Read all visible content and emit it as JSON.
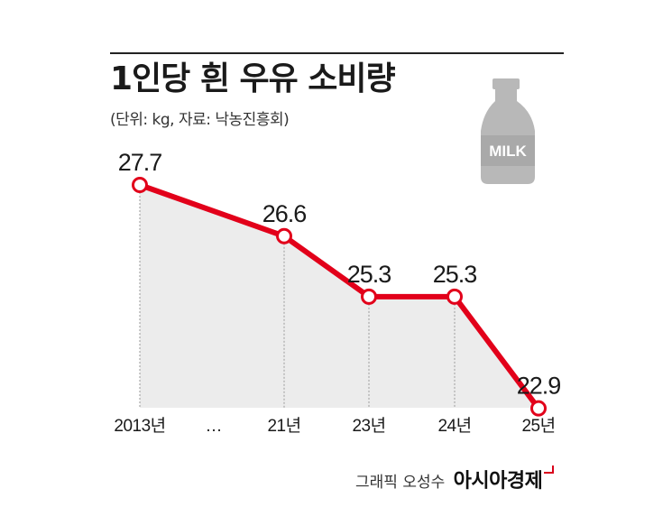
{
  "title": "1인당 흰 우유 소비량",
  "subtitle": "(단위: kg, 자료: 낙농진흥회)",
  "milk_label": "MILK",
  "credit": {
    "author": "그래픽 오성수",
    "outlet": "아시아경제"
  },
  "colors": {
    "line": "#e2001a",
    "area": "#ececec",
    "text": "#1a1a1a"
  },
  "chart_data": {
    "type": "line",
    "categories": [
      "2013년",
      "…",
      "21년",
      "23년",
      "24년",
      "25년"
    ],
    "points": [
      {
        "label": "2013년",
        "value": 27.7,
        "value_label": "27.7"
      },
      {
        "label": "21년",
        "value": 26.6,
        "value_label": "26.6"
      },
      {
        "label": "23년",
        "value": 25.3,
        "value_label": "25.3"
      },
      {
        "label": "24년",
        "value": 25.3,
        "value_label": "25.3"
      },
      {
        "label": "25년",
        "value": 22.9,
        "value_label": "22.9"
      }
    ],
    "gap_label": "…",
    "title": "1인당 흰 우유 소비량",
    "ylabel": "",
    "unit": "kg"
  }
}
